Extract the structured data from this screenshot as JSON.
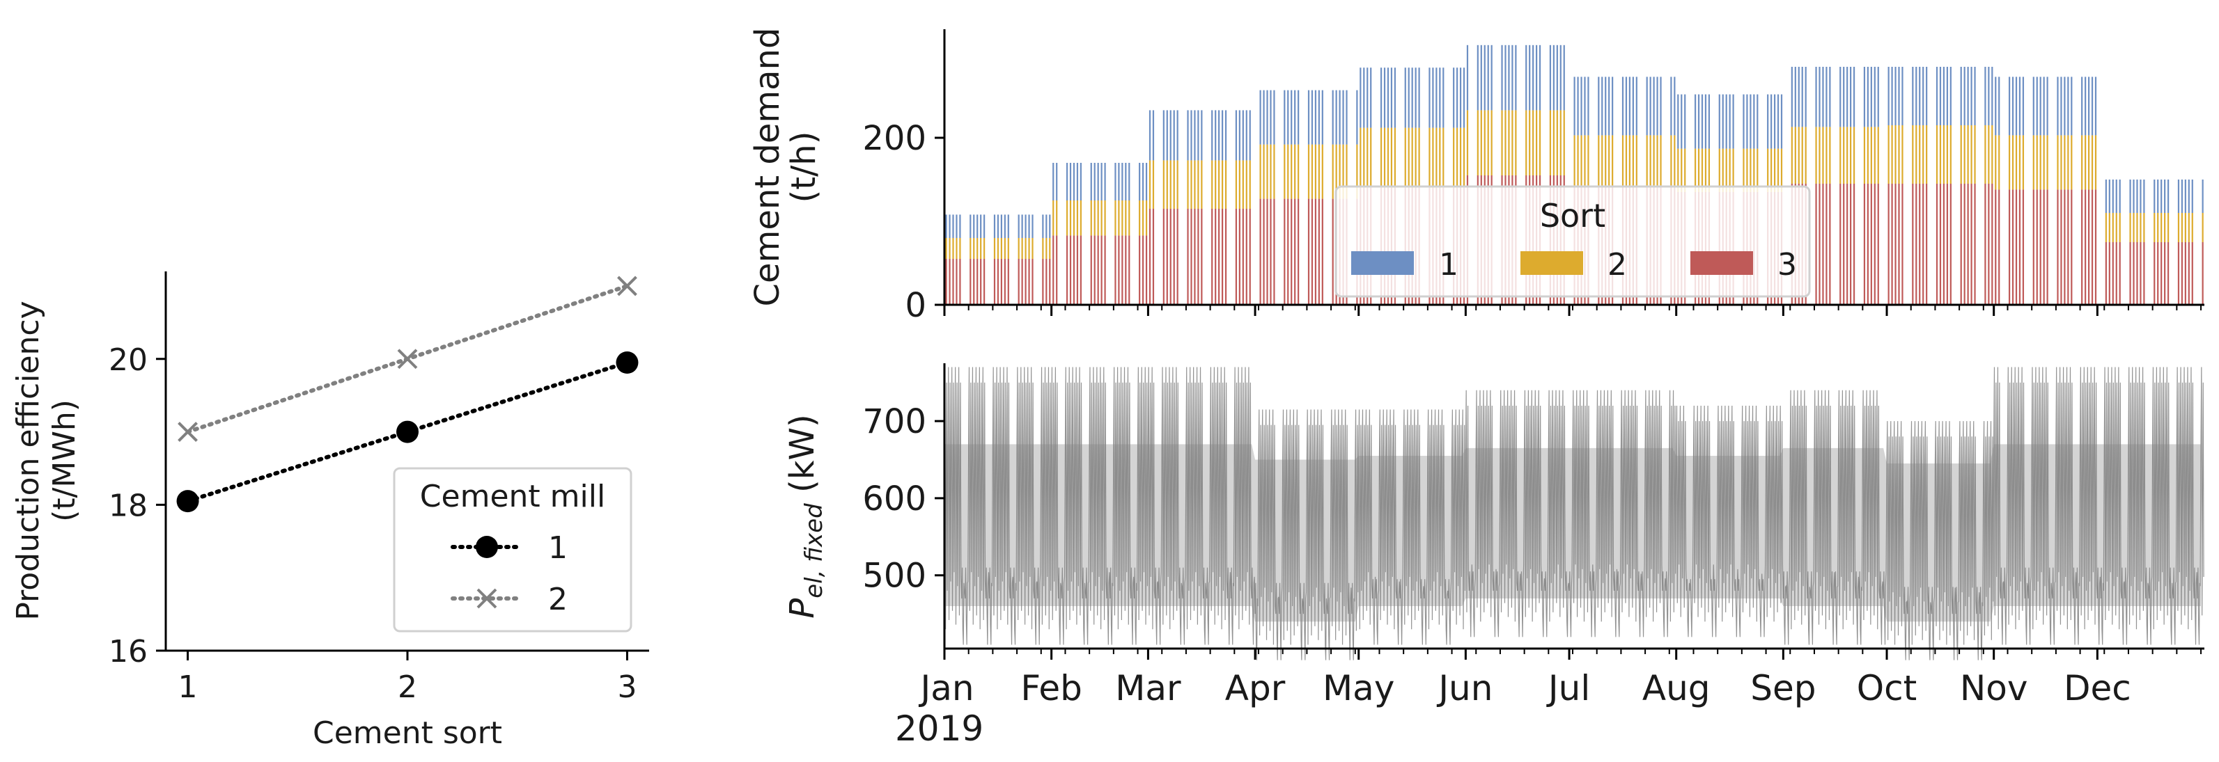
{
  "chart_data": [
    {
      "type": "line",
      "title": "",
      "xlabel": "Cement sort",
      "ylabel": "Production efficiency\n(t/MWh)",
      "ylabel_lines": [
        "Production efficiency",
        "(t/MWh)"
      ],
      "x": [
        1,
        2,
        3
      ],
      "xticks": [
        "1",
        "2",
        "3"
      ],
      "yticks": [
        "16",
        "18",
        "20"
      ],
      "xlim": [
        0.9,
        3.1
      ],
      "ylim": [
        16,
        21.2
      ],
      "series": [
        {
          "name": "1",
          "values": [
            18.05,
            19.0,
            19.95
          ],
          "color": "#000000",
          "marker": "circle",
          "linestyle": "dotted"
        },
        {
          "name": "2",
          "values": [
            19.0,
            20.0,
            21.0
          ],
          "color": "#808080",
          "marker": "x",
          "linestyle": "dotted"
        }
      ],
      "legend": {
        "title": "Cement mill",
        "placement": "lower-right",
        "entries": [
          "1",
          "2"
        ]
      }
    },
    {
      "type": "bar",
      "stacked": true,
      "xlabel": "",
      "ylabel": "Cement demand\n(t/h)",
      "ylabel_lines": [
        "Cement demand",
        "(t/h)"
      ],
      "yticks": [
        "0",
        "200"
      ],
      "ylim": [
        0,
        330
      ],
      "colors": {
        "1": "#6d8fc3",
        "2": "#ddab2e",
        "3": "#bf5a58"
      },
      "monthly_profile": {
        "months": [
          "Jan",
          "Feb",
          "Mar",
          "Apr",
          "May",
          "Jun",
          "Jul",
          "Aug",
          "Sep",
          "Oct",
          "Nov",
          "Dec"
        ],
        "series": [
          {
            "name": "3",
            "values": [
              55,
              83,
              115,
              127,
              140,
              155,
              143,
              135,
              145,
              145,
              138,
              75
            ]
          },
          {
            "name": "2",
            "values": [
              25,
              42,
              58,
              65,
              72,
              78,
              60,
              52,
              68,
              70,
              65,
              35
            ]
          },
          {
            "name": "1",
            "values": [
              28,
              45,
              60,
              65,
              72,
              78,
              70,
              65,
              72,
              70,
              70,
              40
            ]
          }
        ]
      },
      "legend": {
        "title": "Sort",
        "placement": "lower-center",
        "entries": [
          "1",
          "2",
          "3"
        ]
      }
    },
    {
      "type": "line",
      "xlabel": "",
      "ylabel": "P_el,fixed (kW)",
      "ylabel_main": "P",
      "ylabel_sub": "el, fixed",
      "ylabel_unit": " (kW)",
      "yticks": [
        "500",
        "600",
        "700"
      ],
      "ylim": [
        405,
        775
      ],
      "color": "#808080",
      "monthly_profile": {
        "months": [
          "Jan",
          "Feb",
          "Mar",
          "Apr",
          "May",
          "Jun",
          "Jul",
          "Aug",
          "Sep",
          "Oct",
          "Nov",
          "Dec"
        ],
        "max": [
          770,
          770,
          770,
          715,
          715,
          740,
          740,
          720,
          740,
          700,
          770,
          770
        ],
        "typical": [
          670,
          670,
          670,
          650,
          655,
          665,
          665,
          655,
          665,
          645,
          670,
          670
        ],
        "min": [
          430,
          430,
          430,
          410,
          430,
          440,
          440,
          440,
          430,
          410,
          430,
          430
        ]
      }
    }
  ],
  "shared_xaxis": {
    "ticks": [
      "Jan",
      "Feb",
      "Mar",
      "Apr",
      "May",
      "Jun",
      "Jul",
      "Aug",
      "Sep",
      "Oct",
      "Nov",
      "Dec"
    ],
    "year_label": "2019",
    "range": [
      "2019-01-01",
      "2019-12-31"
    ]
  }
}
